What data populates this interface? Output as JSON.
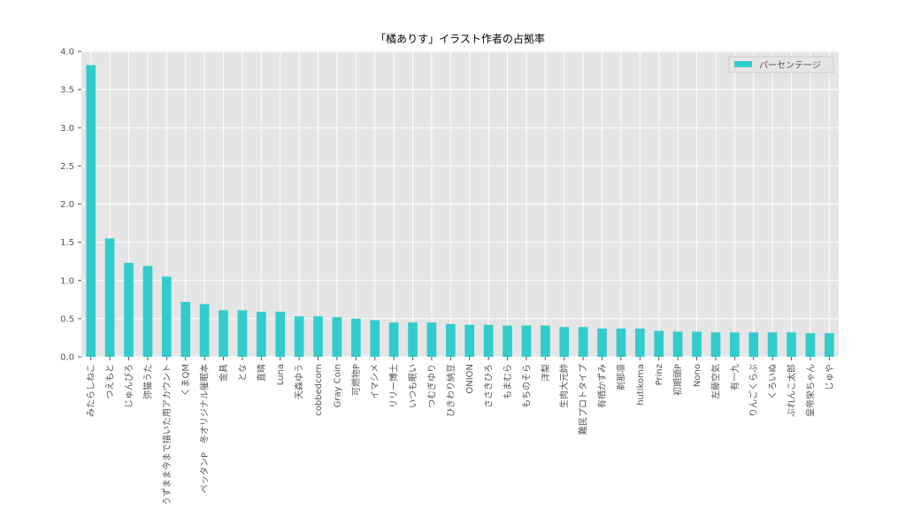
{
  "chart_data": {
    "type": "bar",
    "title": "「橘ありす」イラスト作者の占拠率",
    "categories": [
      "みたらしねこ",
      "つえもと",
      "じゅんぴろ",
      "弥猫うた",
      "うずまま今まで描いた用アカウント",
      "くまQM",
      "ペッタンP　冬オリジナル催眠本",
      "金具",
      "とな",
      "直晴",
      "Luna",
      "天森ゆう",
      "cobbedcorn",
      "Gray Coin",
      "可燃物P",
      "イマシメ",
      "リリー博士",
      "いつも眠い",
      "つむぎゆり",
      "ひきわり納豆",
      "ONION",
      "ささきひろ",
      "もまむら",
      "もちのそら",
      "洋梨",
      "生肉大元帥",
      "難民プロトタイプ",
      "有栖かずみ",
      "剃那凛",
      "hutikoma",
      "Prinz",
      "初期頭P",
      "Nono",
      "左藤空気",
      "有一九",
      "りんごくらぶ",
      "くろいぬ",
      "ぶれんこ太郎",
      "皇帝栄ちゃん",
      "じゅや"
    ],
    "series": [
      {
        "name": "パーセンテージ",
        "color": "#33cccc",
        "values": [
          3.82,
          1.55,
          1.23,
          1.19,
          1.05,
          0.72,
          0.69,
          0.61,
          0.61,
          0.59,
          0.59,
          0.53,
          0.53,
          0.52,
          0.5,
          0.48,
          0.45,
          0.45,
          0.45,
          0.43,
          0.42,
          0.42,
          0.41,
          0.41,
          0.41,
          0.39,
          0.39,
          0.37,
          0.37,
          0.37,
          0.34,
          0.33,
          0.33,
          0.32,
          0.32,
          0.32,
          0.32,
          0.32,
          0.31,
          0.31
        ]
      }
    ],
    "ylim": [
      0,
      4
    ],
    "yticks": [
      {
        "value": 0,
        "label": "0.0"
      },
      {
        "value": 0.5,
        "label": "0.5"
      },
      {
        "value": 1,
        "label": "1.0"
      },
      {
        "value": 1.5,
        "label": "1.5"
      },
      {
        "value": 2,
        "label": "2.0"
      },
      {
        "value": 2.5,
        "label": "2.5"
      },
      {
        "value": 3,
        "label": "3.0"
      },
      {
        "value": 3.5,
        "label": "3.5"
      },
      {
        "value": 4,
        "label": "4.0"
      }
    ],
    "grid": true,
    "legend": "upper right"
  }
}
